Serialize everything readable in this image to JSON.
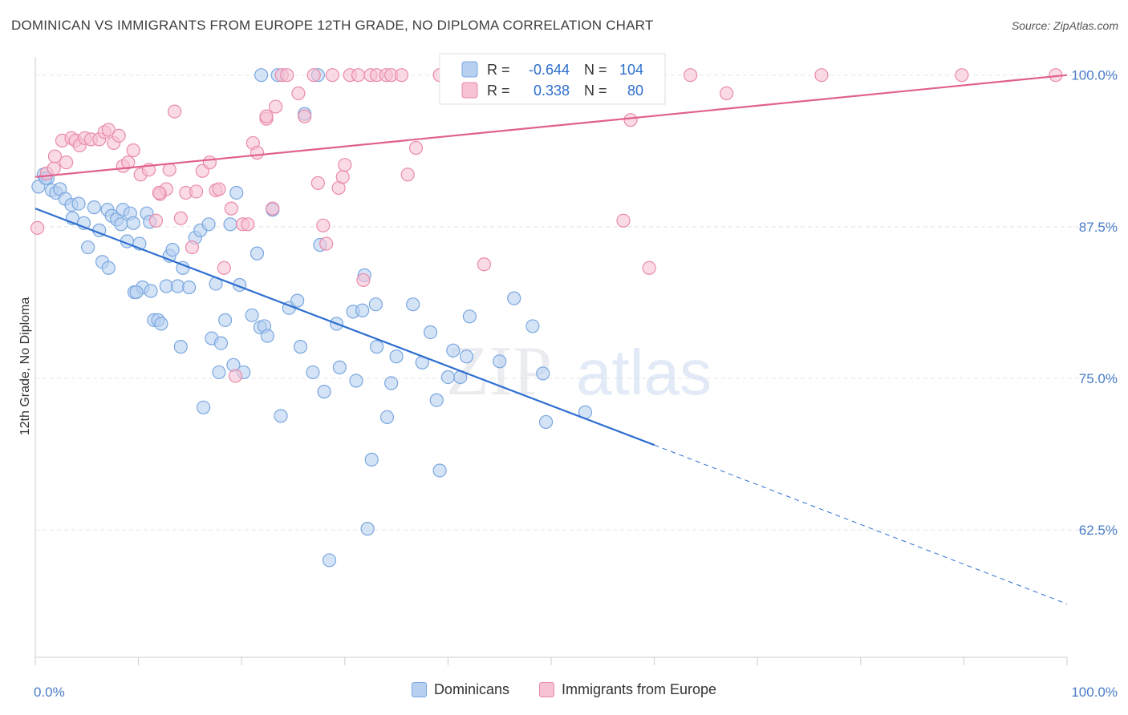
{
  "header": {
    "title": "DOMINICAN VS IMMIGRANTS FROM EUROPE 12TH GRADE, NO DIPLOMA CORRELATION CHART",
    "source": "Source: ZipAtlas.com"
  },
  "watermark": {
    "part1": "ZIP",
    "part2": "atlas"
  },
  "chart_data": {
    "type": "scatter",
    "title": "DOMINICAN VS IMMIGRANTS FROM EUROPE 12TH GRADE, NO DIPLOMA CORRELATION CHART",
    "xlabel": "",
    "ylabel": "12th Grade, No Diploma",
    "xlim": [
      0,
      100
    ],
    "ylim": [
      52,
      101.5
    ],
    "x_tick_labels": [
      {
        "value": 0,
        "label": "0.0%"
      },
      {
        "value": 100,
        "label": "100.0%"
      }
    ],
    "y_tick_labels": [
      {
        "value": 100,
        "label": "100.0%"
      },
      {
        "value": 87.5,
        "label": "87.5%"
      },
      {
        "value": 75,
        "label": "75.0%"
      },
      {
        "value": 62.5,
        "label": "62.5%"
      }
    ],
    "grid": true,
    "legend_position": "top-center",
    "stats": [
      {
        "r_label": "R =",
        "r_value": "-0.644",
        "n_label": "N =",
        "n_value": "104"
      },
      {
        "r_label": "R =",
        "r_value": "0.338",
        "n_label": "N =",
        "n_value": "80"
      }
    ],
    "series": [
      {
        "name": "Dominicans",
        "color": "#7aa7e0",
        "fill": "#b7d0f0",
        "trend": {
          "x0": 0,
          "y0": 89.0,
          "x1": 60,
          "y1": 69.5,
          "dash_to_x": 100,
          "dash_to_y": 56.4,
          "color": "#2e6fd0"
        },
        "points": [
          [
            0.3,
            90.8
          ],
          [
            0.8,
            91.8
          ],
          [
            1.2,
            91.5
          ],
          [
            1.6,
            90.5
          ],
          [
            2.0,
            90.3
          ],
          [
            2.4,
            90.6
          ],
          [
            2.9,
            89.8
          ],
          [
            3.5,
            89.3
          ],
          [
            3.6,
            88.2
          ],
          [
            4.2,
            89.4
          ],
          [
            4.7,
            87.8
          ],
          [
            5.1,
            85.8
          ],
          [
            5.7,
            89.1
          ],
          [
            6.2,
            87.2
          ],
          [
            6.5,
            84.6
          ],
          [
            7.0,
            88.9
          ],
          [
            7.1,
            84.1
          ],
          [
            7.4,
            88.4
          ],
          [
            7.9,
            88.1
          ],
          [
            8.3,
            87.7
          ],
          [
            8.5,
            88.9
          ],
          [
            8.9,
            86.3
          ],
          [
            9.2,
            88.6
          ],
          [
            9.5,
            87.8
          ],
          [
            9.6,
            82.1
          ],
          [
            10.1,
            86.1
          ],
          [
            10.4,
            82.5
          ],
          [
            10.8,
            88.6
          ],
          [
            11.1,
            87.9
          ],
          [
            11.2,
            82.2
          ],
          [
            11.5,
            79.8
          ],
          [
            11.9,
            79.8
          ],
          [
            12.2,
            79.5
          ],
          [
            12.7,
            82.6
          ],
          [
            13.0,
            85.1
          ],
          [
            13.3,
            85.6
          ],
          [
            13.8,
            82.6
          ],
          [
            14.1,
            77.6
          ],
          [
            14.3,
            84.1
          ],
          [
            14.9,
            82.5
          ],
          [
            15.5,
            86.6
          ],
          [
            16.0,
            87.2
          ],
          [
            16.3,
            72.6
          ],
          [
            16.8,
            87.7
          ],
          [
            17.1,
            78.3
          ],
          [
            17.5,
            82.8
          ],
          [
            17.8,
            75.5
          ],
          [
            18.0,
            77.9
          ],
          [
            18.4,
            79.8
          ],
          [
            18.9,
            87.7
          ],
          [
            19.2,
            76.1
          ],
          [
            19.5,
            90.3
          ],
          [
            19.8,
            82.7
          ],
          [
            20.2,
            75.5
          ],
          [
            21.0,
            80.2
          ],
          [
            21.5,
            85.3
          ],
          [
            21.8,
            79.2
          ],
          [
            22.2,
            79.3
          ],
          [
            22.5,
            78.5
          ],
          [
            21.9,
            100.0
          ],
          [
            23.0,
            88.9
          ],
          [
            23.5,
            100.0
          ],
          [
            23.8,
            71.9
          ],
          [
            24.6,
            80.8
          ],
          [
            25.4,
            81.4
          ],
          [
            25.7,
            77.6
          ],
          [
            26.1,
            96.8
          ],
          [
            26.9,
            75.5
          ],
          [
            27.4,
            100.0
          ],
          [
            27.6,
            86.0
          ],
          [
            28.0,
            73.9
          ],
          [
            29.2,
            79.5
          ],
          [
            29.5,
            75.9
          ],
          [
            30.8,
            80.5
          ],
          [
            31.1,
            74.8
          ],
          [
            31.7,
            80.6
          ],
          [
            31.9,
            83.5
          ],
          [
            32.2,
            62.6
          ],
          [
            32.6,
            68.3
          ],
          [
            33.0,
            81.1
          ],
          [
            33.1,
            77.6
          ],
          [
            34.1,
            71.8
          ],
          [
            34.5,
            74.6
          ],
          [
            35.0,
            76.8
          ],
          [
            36.6,
            81.1
          ],
          [
            37.5,
            76.3
          ],
          [
            38.3,
            78.8
          ],
          [
            38.9,
            73.2
          ],
          [
            39.2,
            67.4
          ],
          [
            40.0,
            75.1
          ],
          [
            40.5,
            77.3
          ],
          [
            41.2,
            75.1
          ],
          [
            41.8,
            76.8
          ],
          [
            42.1,
            80.1
          ],
          [
            45.0,
            76.4
          ],
          [
            46.4,
            81.6
          ],
          [
            47.0,
            100.0
          ],
          [
            48.2,
            79.3
          ],
          [
            49.2,
            75.4
          ],
          [
            49.5,
            71.4
          ],
          [
            53.3,
            72.2
          ],
          [
            28.5,
            60.0
          ],
          [
            1.0,
            91.5
          ],
          [
            9.8,
            82.1
          ]
        ]
      },
      {
        "name": "Immigrants from Europe",
        "color": "#e98aab",
        "fill": "#f7c2d3",
        "trend": {
          "x0": 0,
          "y0": 91.6,
          "x1": 100,
          "y1": 100.0,
          "color": "#e0608e"
        },
        "points": [
          [
            0.2,
            87.4
          ],
          [
            1.1,
            91.9
          ],
          [
            1.9,
            93.3
          ],
          [
            2.6,
            94.6
          ],
          [
            3.0,
            92.8
          ],
          [
            3.5,
            94.8
          ],
          [
            3.9,
            94.6
          ],
          [
            4.3,
            94.2
          ],
          [
            4.8,
            94.8
          ],
          [
            5.4,
            94.7
          ],
          [
            6.2,
            94.7
          ],
          [
            6.7,
            95.3
          ],
          [
            7.1,
            95.5
          ],
          [
            7.6,
            94.4
          ],
          [
            8.1,
            95.0
          ],
          [
            8.5,
            92.5
          ],
          [
            9.0,
            92.8
          ],
          [
            9.5,
            93.8
          ],
          [
            10.2,
            91.8
          ],
          [
            11.0,
            92.2
          ],
          [
            11.7,
            88.0
          ],
          [
            12.1,
            90.2
          ],
          [
            12.7,
            90.6
          ],
          [
            13.0,
            92.2
          ],
          [
            13.5,
            97.0
          ],
          [
            14.1,
            88.2
          ],
          [
            14.6,
            90.3
          ],
          [
            15.2,
            85.8
          ],
          [
            15.6,
            90.4
          ],
          [
            16.2,
            92.1
          ],
          [
            16.9,
            92.8
          ],
          [
            17.5,
            90.5
          ],
          [
            17.8,
            90.6
          ],
          [
            18.3,
            84.1
          ],
          [
            19.0,
            89.0
          ],
          [
            19.4,
            75.2
          ],
          [
            20.1,
            87.7
          ],
          [
            20.6,
            87.7
          ],
          [
            21.1,
            94.4
          ],
          [
            21.5,
            93.6
          ],
          [
            22.4,
            96.4
          ],
          [
            23.0,
            89.0
          ],
          [
            23.3,
            97.4
          ],
          [
            23.9,
            100.0
          ],
          [
            24.4,
            100.0
          ],
          [
            25.5,
            98.5
          ],
          [
            26.1,
            96.6
          ],
          [
            27.0,
            100.0
          ],
          [
            27.4,
            91.1
          ],
          [
            27.9,
            87.6
          ],
          [
            28.2,
            86.1
          ],
          [
            28.8,
            100.0
          ],
          [
            29.4,
            90.7
          ],
          [
            29.8,
            91.6
          ],
          [
            30.5,
            100.0
          ],
          [
            31.3,
            100.0
          ],
          [
            31.8,
            83.1
          ],
          [
            32.5,
            100.0
          ],
          [
            33.1,
            100.0
          ],
          [
            34.0,
            100.0
          ],
          [
            34.5,
            100.0
          ],
          [
            35.5,
            100.0
          ],
          [
            36.1,
            91.8
          ],
          [
            39.2,
            100.0
          ],
          [
            40.1,
            100.0
          ],
          [
            43.5,
            84.4
          ],
          [
            55.6,
            100.0
          ],
          [
            59.5,
            84.1
          ],
          [
            67.0,
            98.5
          ],
          [
            76.2,
            100.0
          ],
          [
            89.8,
            100.0
          ],
          [
            98.9,
            100.0
          ],
          [
            36.9,
            94.0
          ],
          [
            30.0,
            92.6
          ],
          [
            22.4,
            96.6
          ],
          [
            12.0,
            90.3
          ],
          [
            57.7,
            96.3
          ],
          [
            63.5,
            100.0
          ],
          [
            57.0,
            88.0
          ],
          [
            1.8,
            92.3
          ]
        ]
      }
    ]
  },
  "legend_bottom": {
    "items": [
      {
        "label": "Dominicans",
        "color": "#7aa7e0",
        "fill": "#b7d0f0"
      },
      {
        "label": "Immigrants from Europe",
        "color": "#e98aab",
        "fill": "#f7c2d3"
      }
    ]
  }
}
